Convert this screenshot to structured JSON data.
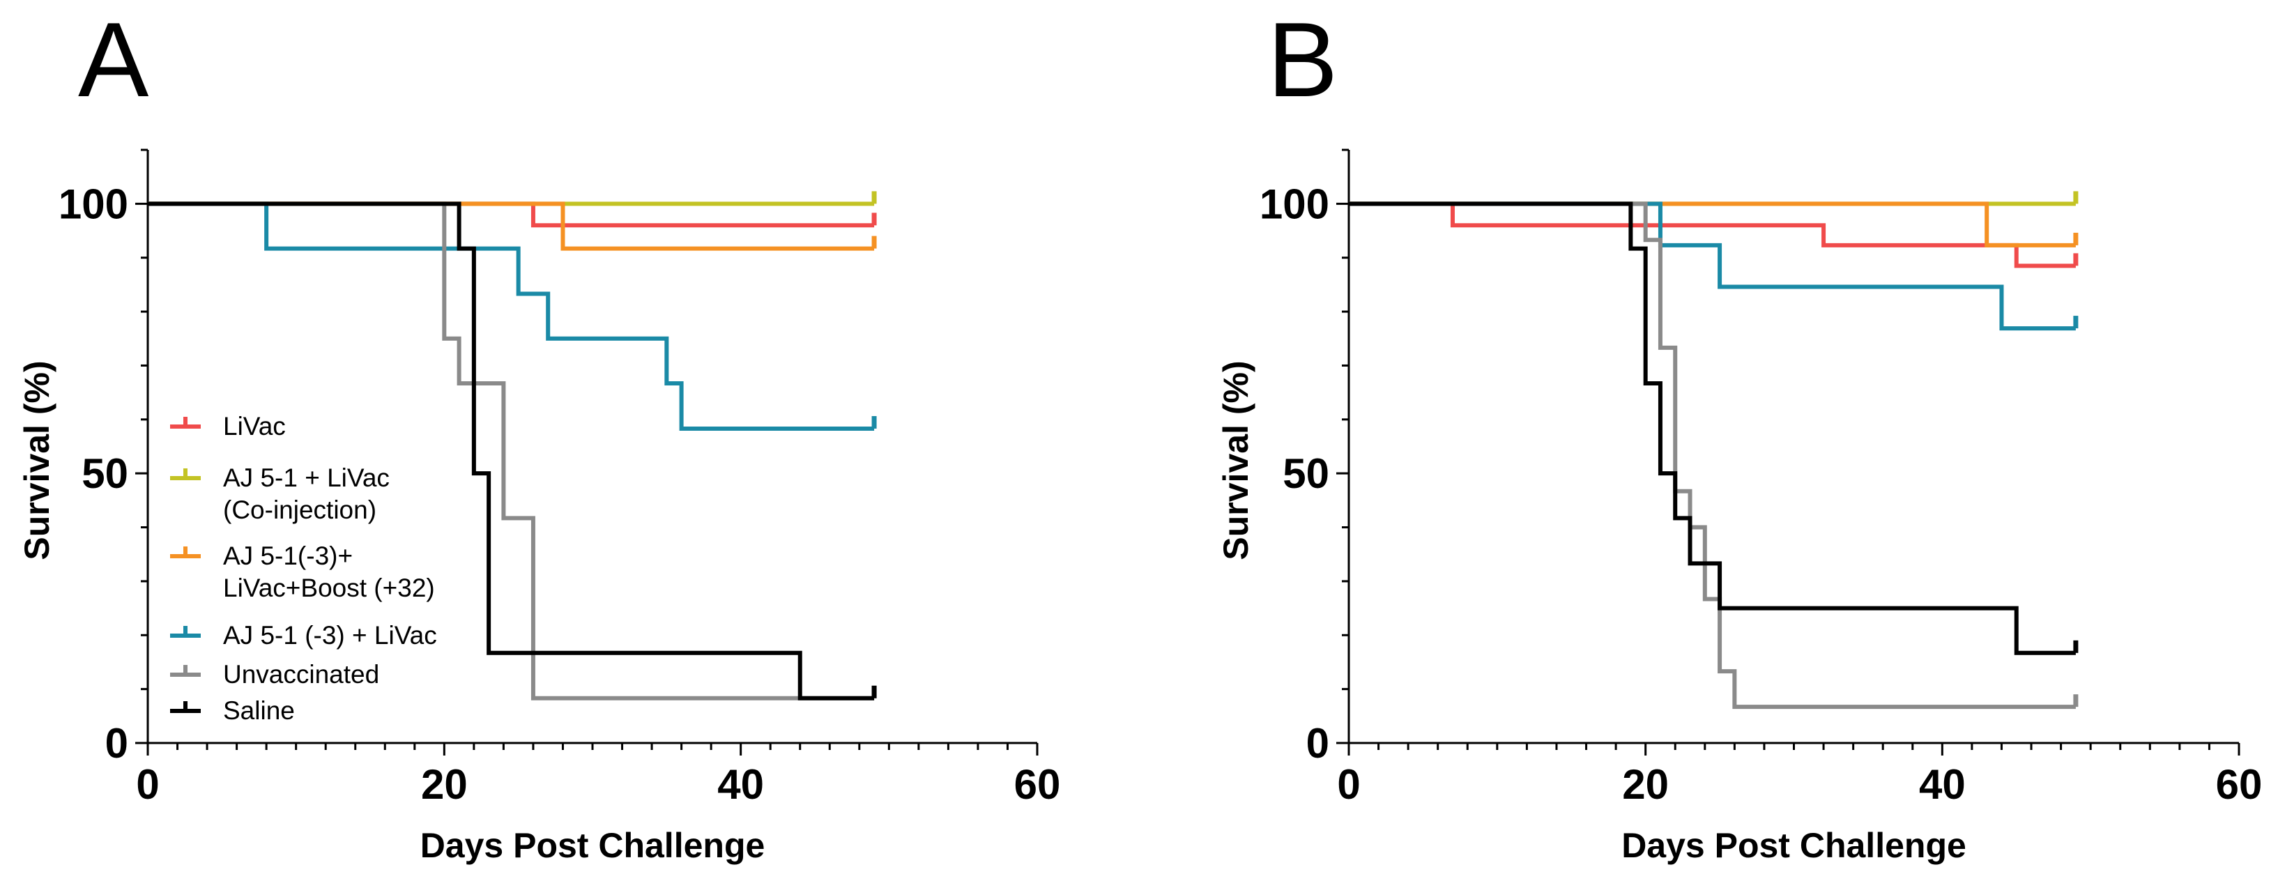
{
  "chart_data": [
    {
      "type": "line",
      "subtype": "kaplan-meier-step",
      "panel": "A",
      "xlabel": "Days Post Challenge",
      "ylabel": "Survival (%)",
      "xlim": [
        0,
        60
      ],
      "ylim": [
        0,
        110
      ],
      "xticks": [
        0,
        20,
        40,
        60
      ],
      "yticks": [
        0,
        50,
        100
      ],
      "grid": false,
      "legend_position": "lower-left",
      "series": [
        {
          "name": "LiVac",
          "color": "#f04b4b",
          "x": [
            0,
            26,
            49
          ],
          "y": [
            100,
            96,
            96
          ]
        },
        {
          "name": "AJ 5-1 + LiVac (Co-injection)",
          "color": "#c3c324",
          "x": [
            0,
            49
          ],
          "y": [
            100,
            100
          ]
        },
        {
          "name": "AJ 5-1(-3)+ LiVac+Boost (+32)",
          "color": "#f59123",
          "x": [
            0,
            28,
            49
          ],
          "y": [
            100,
            91.7,
            91.7
          ]
        },
        {
          "name": "AJ 5-1 (-3) + LiVac",
          "color": "#1a8aa6",
          "x": [
            0,
            8,
            25,
            27,
            35,
            36,
            49
          ],
          "y": [
            100,
            91.7,
            83.3,
            75,
            66.7,
            58.3,
            58.3
          ]
        },
        {
          "name": "Unvaccinated",
          "color": "#8a8a8a",
          "x": [
            0,
            20,
            21,
            22,
            24,
            26,
            49
          ],
          "y": [
            100,
            75,
            66.7,
            66.7,
            41.7,
            8.3,
            8.3
          ]
        },
        {
          "name": "Saline",
          "color": "#000000",
          "x": [
            0,
            21,
            22,
            23,
            23.5,
            44,
            49
          ],
          "y": [
            100,
            91.7,
            50,
            16.7,
            16.7,
            8.3,
            8.3
          ]
        }
      ]
    },
    {
      "type": "line",
      "subtype": "kaplan-meier-step",
      "panel": "B",
      "xlabel": "Days Post Challenge",
      "ylabel": "Survival (%)",
      "xlim": [
        0,
        60
      ],
      "ylim": [
        0,
        110
      ],
      "xticks": [
        0,
        20,
        40,
        60
      ],
      "yticks": [
        0,
        50,
        100
      ],
      "grid": false,
      "series": [
        {
          "name": "LiVac",
          "color": "#f04b4b",
          "x": [
            0,
            7,
            32,
            45,
            49
          ],
          "y": [
            100,
            96,
            92.3,
            88.5,
            88.5
          ]
        },
        {
          "name": "AJ 5-1 + LiVac (Co-injection)",
          "color": "#c3c324",
          "x": [
            0,
            49
          ],
          "y": [
            100,
            100
          ]
        },
        {
          "name": "AJ 5-1(-3)+ LiVac+Boost (+32)",
          "color": "#f59123",
          "x": [
            0,
            43,
            49
          ],
          "y": [
            100,
            92.3,
            92.3
          ]
        },
        {
          "name": "AJ 5-1 (-3) + LiVac",
          "color": "#1a8aa6",
          "x": [
            0,
            21,
            25,
            44,
            49
          ],
          "y": [
            100,
            92.3,
            84.6,
            76.9,
            76.9
          ]
        },
        {
          "name": "Unvaccinated",
          "color": "#8a8a8a",
          "x": [
            0,
            20,
            21,
            22,
            23,
            24,
            25,
            26,
            49
          ],
          "y": [
            100,
            93.3,
            73.3,
            46.7,
            40,
            26.7,
            13.3,
            6.7,
            6.7
          ]
        },
        {
          "name": "Saline",
          "color": "#000000",
          "x": [
            0,
            19,
            20,
            21,
            22,
            23,
            25,
            45,
            49
          ],
          "y": [
            100,
            91.7,
            66.7,
            50,
            41.7,
            33.3,
            25,
            16.7,
            16.7
          ]
        }
      ]
    }
  ],
  "legend": {
    "entries": [
      {
        "lines": [
          "LiVac"
        ],
        "color": "#f04b4b"
      },
      {
        "lines": [
          "AJ 5-1 + LiVac",
          "(Co-injection)"
        ],
        "color": "#c3c324"
      },
      {
        "lines": [
          "AJ 5-1(-3)+",
          "LiVac+Boost (+32)"
        ],
        "color": "#f59123"
      },
      {
        "lines": [
          "AJ 5-1 (-3) + LiVac"
        ],
        "color": "#1a8aa6"
      },
      {
        "lines": [
          "Unvaccinated"
        ],
        "color": "#8a8a8a"
      },
      {
        "lines": [
          "Saline"
        ],
        "color": "#000000"
      }
    ]
  }
}
